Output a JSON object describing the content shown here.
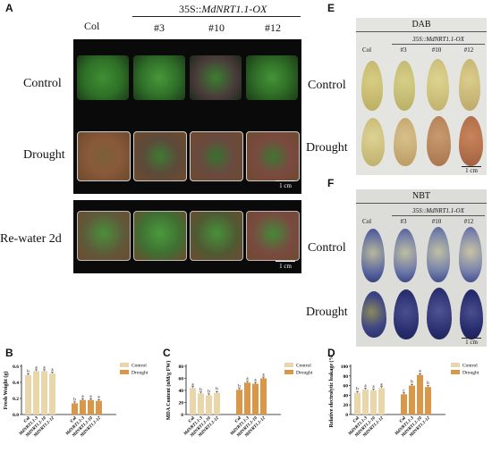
{
  "panel_A": {
    "letter": "A",
    "col_header": "Col",
    "construct_prefix": "35S::",
    "construct_gene": "MdNRT1.1-OX",
    "lines": [
      "#3",
      "#10",
      "#12"
    ],
    "rows": [
      "Control",
      "Drought",
      "Re-water 2d"
    ],
    "scale": "1 cm"
  },
  "panel_E": {
    "letter": "E",
    "stain": "DAB",
    "col_header": "Col",
    "construct": "35S::MdNRT1.1-OX",
    "lines": [
      "#3",
      "#10",
      "#12"
    ],
    "rows": [
      "Control",
      "Drought"
    ],
    "scale": "1 cm"
  },
  "panel_F": {
    "letter": "F",
    "stain": "NBT",
    "col_header": "Col",
    "construct": "35S::MdNRT1.1-OX",
    "lines": [
      "#3",
      "#10",
      "#12"
    ],
    "rows": [
      "Control",
      "Drought"
    ],
    "scale": "1 cm"
  },
  "colors": {
    "control": "#e9d6aa",
    "drought": "#d9974a"
  },
  "chart_data": [
    {
      "panel": "B",
      "type": "bar",
      "ylabel": "Fresh Weight (g)",
      "ylim": [
        0,
        0.6
      ],
      "yticks": [
        "0.0",
        "0.2",
        "0.4",
        "0.6"
      ],
      "categories": [
        "Col",
        "MdNRT1.1-3",
        "MdNRT1.1-10",
        "MdNRT1.1-12"
      ],
      "legend": [
        "Control",
        "Drought"
      ],
      "series": [
        {
          "name": "Control",
          "values": [
            0.49,
            0.54,
            0.54,
            0.51
          ],
          "letters": [
            "b",
            "a",
            "a",
            "a"
          ]
        },
        {
          "name": "Drought",
          "values": [
            0.14,
            0.18,
            0.18,
            0.17
          ],
          "letters": [
            "b",
            "a",
            "a",
            "a"
          ]
        }
      ]
    },
    {
      "panel": "C",
      "type": "bar",
      "ylabel": "MDA Content (nM/g FW)",
      "ylim": [
        0,
        80
      ],
      "yticks": [
        "0",
        "20",
        "40",
        "60",
        "80"
      ],
      "categories": [
        "Col",
        "MdNRT1.1-3",
        "MdNRT1.1-10",
        "MdNRT1.1-12"
      ],
      "legend": [
        "Control",
        "Drought"
      ],
      "series": [
        {
          "name": "Control",
          "values": [
            44,
            35,
            32,
            36
          ],
          "letters": [
            "a",
            "b",
            "b",
            "b"
          ]
        },
        {
          "name": "Drought",
          "values": [
            41,
            53,
            51,
            60
          ],
          "letters": [
            "b",
            "a",
            "a",
            "a"
          ]
        }
      ]
    },
    {
      "panel": "D",
      "type": "bar",
      "ylabel": "Relative electrolytic leakage (%)",
      "ylim": [
        0,
        100
      ],
      "yticks": [
        "0",
        "20",
        "40",
        "60",
        "80",
        "100"
      ],
      "categories": [
        "Col",
        "MdNRT1.1-3",
        "MdNRT1.1-10",
        "MdNRT1.1-12"
      ],
      "legend": [
        "Control",
        "Drought"
      ],
      "series": [
        {
          "name": "Control",
          "values": [
            45,
            52,
            50,
            55
          ],
          "letters": [
            "b",
            "a",
            "a",
            "a"
          ]
        },
        {
          "name": "Drought",
          "values": [
            42,
            60,
            82,
            57
          ],
          "letters": [
            "c",
            "b",
            "a",
            "b"
          ]
        }
      ]
    }
  ]
}
